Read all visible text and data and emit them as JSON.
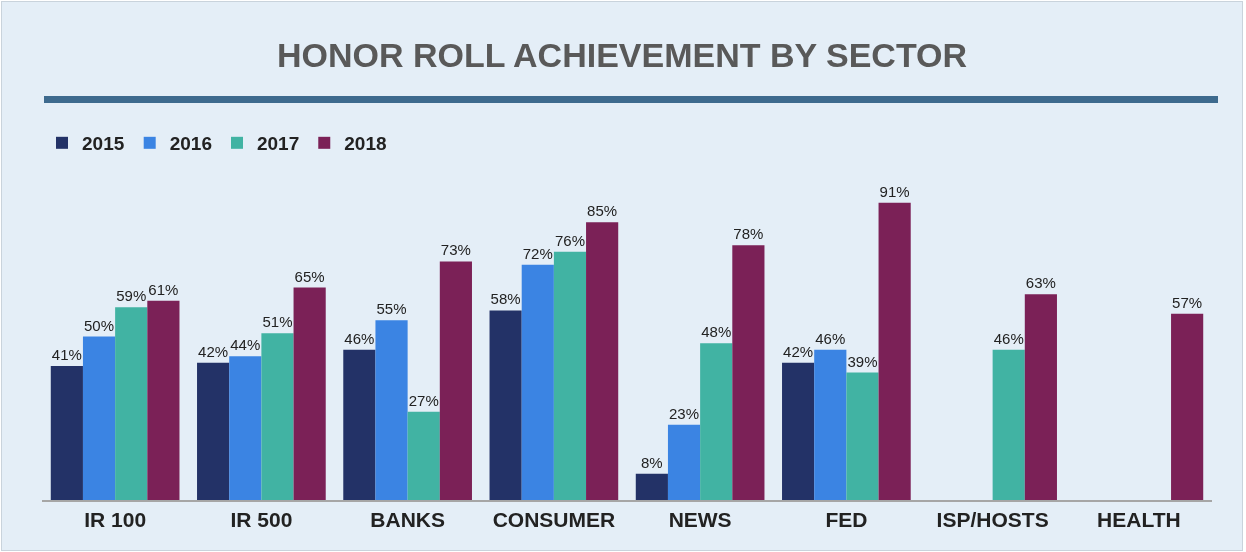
{
  "chart_data": {
    "type": "bar",
    "title": "HONOR ROLL ACHIEVEMENT BY SECTOR",
    "categories": [
      "IR 100",
      "IR 500",
      "BANKS",
      "CONSUMER",
      "NEWS",
      "FED",
      "ISP/HOSTS",
      "HEALTH"
    ],
    "series": [
      {
        "name": "2015",
        "color": "#233267",
        "values": [
          41,
          42,
          46,
          58,
          8,
          42,
          null,
          null
        ],
        "value_labels": [
          "41%",
          "42%",
          "46%",
          "58%",
          "8%",
          "42%",
          null,
          null
        ]
      },
      {
        "name": "2016",
        "color": "#3b84e3",
        "values": [
          50,
          44,
          55,
          72,
          23,
          46,
          null,
          null
        ],
        "value_labels": [
          "50%",
          "44%",
          "55%",
          "72%",
          "23%",
          "46%",
          null,
          null
        ]
      },
      {
        "name": "2017",
        "color": "#41b3a3",
        "values": [
          59,
          51,
          27,
          76,
          48,
          39,
          46,
          null
        ],
        "value_labels": [
          "59%",
          "51%",
          "27%",
          "76%",
          "48%",
          "39%",
          "46%",
          null
        ]
      },
      {
        "name": "2018",
        "color": "#7b2157",
        "values": [
          61,
          65,
          73,
          85,
          78,
          91,
          63,
          57
        ],
        "value_labels": [
          "61%",
          "65%",
          "73%",
          "85%",
          "78%",
          "91%",
          "63%",
          "57%"
        ]
      }
    ],
    "legend": "top left",
    "grid": false
  }
}
